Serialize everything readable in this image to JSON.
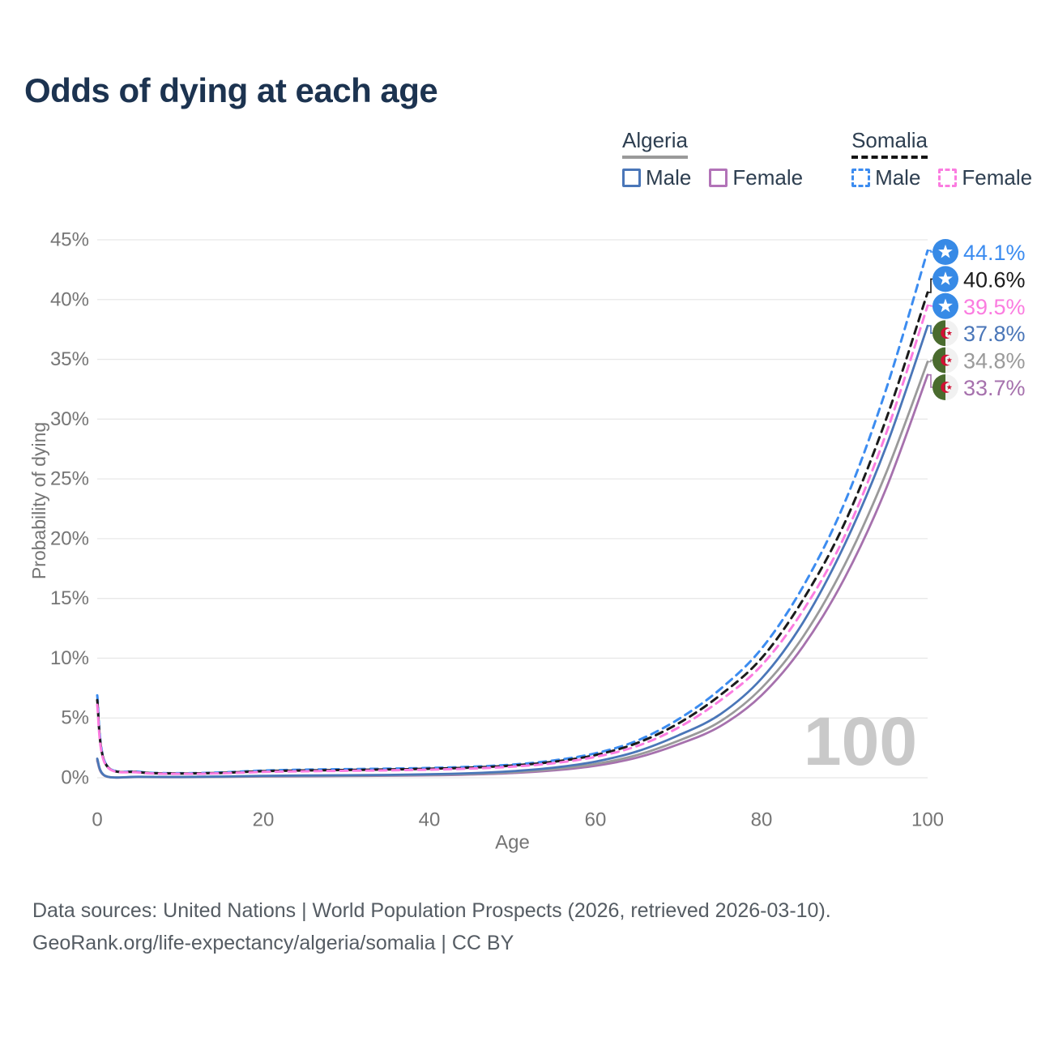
{
  "title": "Odds of dying at each age",
  "watermark": "100",
  "legend": {
    "groups": [
      {
        "name": "Algeria",
        "style": "solid",
        "underline_color": "#9a9a9a",
        "items": [
          {
            "label": "Male",
            "color": "#4a76b8"
          },
          {
            "label": "Female",
            "color": "#b273b8"
          }
        ]
      },
      {
        "name": "Somalia",
        "style": "dashed",
        "underline_color": "#141414",
        "items": [
          {
            "label": "Male",
            "color": "#3c8cf0"
          },
          {
            "label": "Female",
            "color": "#fb7ce0"
          }
        ]
      }
    ]
  },
  "footer": {
    "line1": "Data sources: United Nations | World Population Prospects (2026, retrieved 2026-03-10).",
    "line2": "GeoRank.org/life-expectancy/algeria/somalia | CC BY"
  },
  "chart_data": {
    "type": "line",
    "title": "Odds of dying at each age",
    "xlabel": "Age",
    "ylabel": "Probability of dying",
    "xlim": [
      0,
      100
    ],
    "ylim": [
      0,
      45
    ],
    "x_ticks": [
      0,
      20,
      40,
      60,
      80,
      100
    ],
    "y_ticks": [
      0,
      5,
      10,
      15,
      20,
      25,
      30,
      35,
      40,
      45
    ],
    "y_tick_suffix": "%",
    "grid": "horizontal",
    "legend_position": "top-right",
    "ages": [
      0,
      1,
      5,
      10,
      15,
      20,
      25,
      30,
      35,
      40,
      45,
      50,
      55,
      60,
      65,
      70,
      75,
      80,
      85,
      90,
      95,
      100
    ],
    "series": [
      {
        "name": "Somalia Male",
        "country": "Somalia",
        "sex": "male",
        "dash": true,
        "color": "#3c8cf0",
        "label_color": "#3c8cf0",
        "end_label": "44.1%",
        "end_value": 44.1,
        "flag": "somalia",
        "values": [
          6.9,
          1.2,
          0.5,
          0.38,
          0.45,
          0.6,
          0.68,
          0.72,
          0.76,
          0.82,
          0.92,
          1.1,
          1.45,
          2.05,
          3.1,
          4.9,
          7.4,
          10.8,
          16.0,
          23.0,
          32.5,
          44.1
        ]
      },
      {
        "name": "Somalia Average",
        "country": "Somalia",
        "sex": "average",
        "dash": true,
        "color": "#1b1b1b",
        "label_color": "#1b1b1b",
        "end_label": "40.6%",
        "end_value": 40.6,
        "flag": "somalia",
        "values": [
          6.5,
          1.15,
          0.47,
          0.36,
          0.41,
          0.55,
          0.61,
          0.65,
          0.69,
          0.75,
          0.85,
          1.02,
          1.34,
          1.9,
          2.9,
          4.55,
          6.9,
          10.0,
          14.9,
          21.3,
          30.0,
          40.6
        ]
      },
      {
        "name": "Somalia Female",
        "country": "Somalia",
        "sex": "female",
        "dash": true,
        "color": "#fb7ce0",
        "label_color": "#fb7ce0",
        "end_label": "39.5%",
        "end_value": 39.5,
        "flag": "somalia",
        "values": [
          6.1,
          1.1,
          0.44,
          0.33,
          0.37,
          0.49,
          0.54,
          0.58,
          0.62,
          0.68,
          0.77,
          0.93,
          1.22,
          1.75,
          2.65,
          4.2,
          6.45,
          9.4,
          14.0,
          20.2,
          28.8,
          39.5
        ]
      },
      {
        "name": "Algeria Male",
        "country": "Algeria",
        "sex": "male",
        "dash": false,
        "color": "#4a76b8",
        "label_color": "#4a76b8",
        "end_label": "37.8%",
        "end_value": 37.8,
        "flag": "algeria",
        "values": [
          1.6,
          0.15,
          0.08,
          0.07,
          0.1,
          0.16,
          0.19,
          0.21,
          0.24,
          0.29,
          0.38,
          0.55,
          0.85,
          1.35,
          2.2,
          3.55,
          5.3,
          8.3,
          13.0,
          19.5,
          27.7,
          37.8
        ]
      },
      {
        "name": "Algeria Average",
        "country": "Algeria",
        "sex": "average",
        "dash": false,
        "color": "#9a9a9a",
        "label_color": "#9a9a9a",
        "end_label": "34.8%",
        "end_value": 34.8,
        "flag": "algeria",
        "values": [
          1.5,
          0.14,
          0.07,
          0.06,
          0.08,
          0.13,
          0.15,
          0.17,
          0.2,
          0.24,
          0.32,
          0.46,
          0.72,
          1.15,
          1.9,
          3.1,
          4.7,
          7.5,
          11.8,
          17.8,
          25.5,
          34.8
        ]
      },
      {
        "name": "Algeria Female",
        "country": "Algeria",
        "sex": "female",
        "dash": false,
        "color": "#a671ad",
        "label_color": "#a671ad",
        "end_label": "33.7%",
        "end_value": 33.7,
        "flag": "algeria",
        "values": [
          1.4,
          0.13,
          0.06,
          0.05,
          0.07,
          0.1,
          0.12,
          0.14,
          0.17,
          0.2,
          0.27,
          0.39,
          0.62,
          1.0,
          1.68,
          2.8,
          4.3,
          6.9,
          11.0,
          16.7,
          24.2,
          33.7
        ]
      }
    ]
  },
  "colors": {
    "title": "#1c3350",
    "axis_text": "#757575",
    "gridline": "#e8e8e8",
    "watermark": "#c9c9c9",
    "footer_text": "#555c63",
    "flag_somalia_blue": "#378ae6",
    "flag_algeria_green": "#4a6b2e",
    "flag_algeria_red": "#d21034"
  }
}
